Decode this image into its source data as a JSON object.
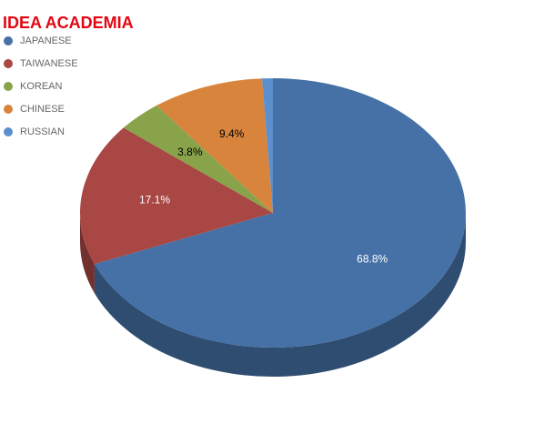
{
  "chart_data": {
    "type": "pie",
    "title": "IDEA ACADEMIA",
    "categories": [
      "JAPANESE",
      "TAIWANESE",
      "KOREAN",
      "CHINESE",
      "RUSSIAN"
    ],
    "values": [
      68.8,
      17.1,
      3.8,
      9.4,
      0.9
    ],
    "value_labels": [
      "68.8%",
      "17.1%",
      "3.8%",
      "9.4%",
      null
    ],
    "colors": [
      "#4571a6",
      "#a84744",
      "#88a34a",
      "#d9843c",
      "#5b8fcd"
    ],
    "legend": "top-left"
  }
}
